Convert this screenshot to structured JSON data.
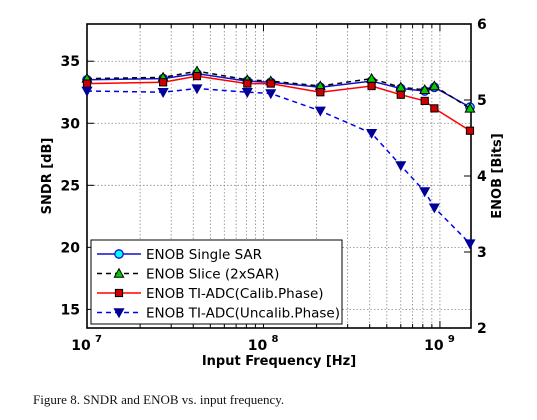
{
  "caption": "Figure 8.   SNDR and ENOB vs. input frequency.",
  "chart_data": {
    "type": "line",
    "xlabel": "Input Frequency [Hz]",
    "ylabel_left": "SNDR [dB]",
    "ylabel_right": "ENOB [Bits]",
    "x_scale": "log",
    "xlim": [
      10000000.0,
      1500000000.0
    ],
    "ylim_left": [
      13.5,
      38
    ],
    "ylim_right": [
      2,
      6
    ],
    "grid": true,
    "legend_position": "lower-left",
    "x_ticks": [
      {
        "value": 10000000.0,
        "base": "10",
        "exp": "7"
      },
      {
        "value": 100000000.0,
        "base": "10",
        "exp": "8"
      },
      {
        "value": 1000000000.0,
        "base": "10",
        "exp": "9"
      }
    ],
    "y_ticks_left": [
      "15",
      "20",
      "25",
      "30",
      "35"
    ],
    "y_ticks_right": [
      "2",
      "3",
      "4",
      "5",
      "6"
    ],
    "series": [
      {
        "name": "ENOB Single SAR",
        "color": "#1111cc",
        "line": "solid",
        "marker": "circle",
        "marker_color": "#00ffff",
        "points": [
          [
            10000000.0,
            33.5
          ],
          [
            27000000.0,
            33.6
          ],
          [
            42000000.0,
            34.0
          ],
          [
            81000000.0,
            33.4
          ],
          [
            110000000.0,
            33.3
          ],
          [
            210000000.0,
            32.9
          ],
          [
            410000000.0,
            33.4
          ],
          [
            600000000.0,
            32.8
          ],
          [
            820000000.0,
            32.6
          ],
          [
            930000000.0,
            32.9
          ],
          [
            1480000000.0,
            31.3
          ]
        ]
      },
      {
        "name": "ENOB Slice (2xSAR)",
        "color": "#000000",
        "line": "dashed",
        "marker": "triangle-up",
        "marker_color": "#00cc00",
        "points": [
          [
            10000000.0,
            33.6
          ],
          [
            27000000.0,
            33.7
          ],
          [
            42000000.0,
            34.2
          ],
          [
            81000000.0,
            33.5
          ],
          [
            110000000.0,
            33.4
          ],
          [
            210000000.0,
            33.0
          ],
          [
            410000000.0,
            33.6
          ],
          [
            600000000.0,
            32.9
          ],
          [
            820000000.0,
            32.7
          ],
          [
            930000000.0,
            33.0
          ],
          [
            1480000000.0,
            31.2
          ]
        ]
      },
      {
        "name": "ENOB TI-ADC(Calib.Phase)",
        "color": "#ff0000",
        "line": "solid",
        "marker": "square",
        "marker_color": "#cc0000",
        "points": [
          [
            10000000.0,
            33.2
          ],
          [
            27000000.0,
            33.3
          ],
          [
            42000000.0,
            33.8
          ],
          [
            81000000.0,
            33.2
          ],
          [
            110000000.0,
            33.2
          ],
          [
            210000000.0,
            32.5
          ],
          [
            410000000.0,
            33.0
          ],
          [
            600000000.0,
            32.3
          ],
          [
            820000000.0,
            31.8
          ],
          [
            930000000.0,
            31.2
          ],
          [
            1480000000.0,
            29.4
          ]
        ]
      },
      {
        "name": "ENOB TI-ADC(Uncalib.Phase)",
        "color": "#0000ee",
        "line": "dashed",
        "marker": "triangle-down",
        "marker_color": "#000099",
        "points": [
          [
            10000000.0,
            32.6
          ],
          [
            27000000.0,
            32.5
          ],
          [
            42000000.0,
            32.8
          ],
          [
            81000000.0,
            32.5
          ],
          [
            110000000.0,
            32.4
          ],
          [
            210000000.0,
            31.0
          ],
          [
            410000000.0,
            29.2
          ],
          [
            600000000.0,
            26.6
          ],
          [
            820000000.0,
            24.5
          ],
          [
            930000000.0,
            23.2
          ],
          [
            1480000000.0,
            20.3
          ]
        ]
      }
    ]
  }
}
